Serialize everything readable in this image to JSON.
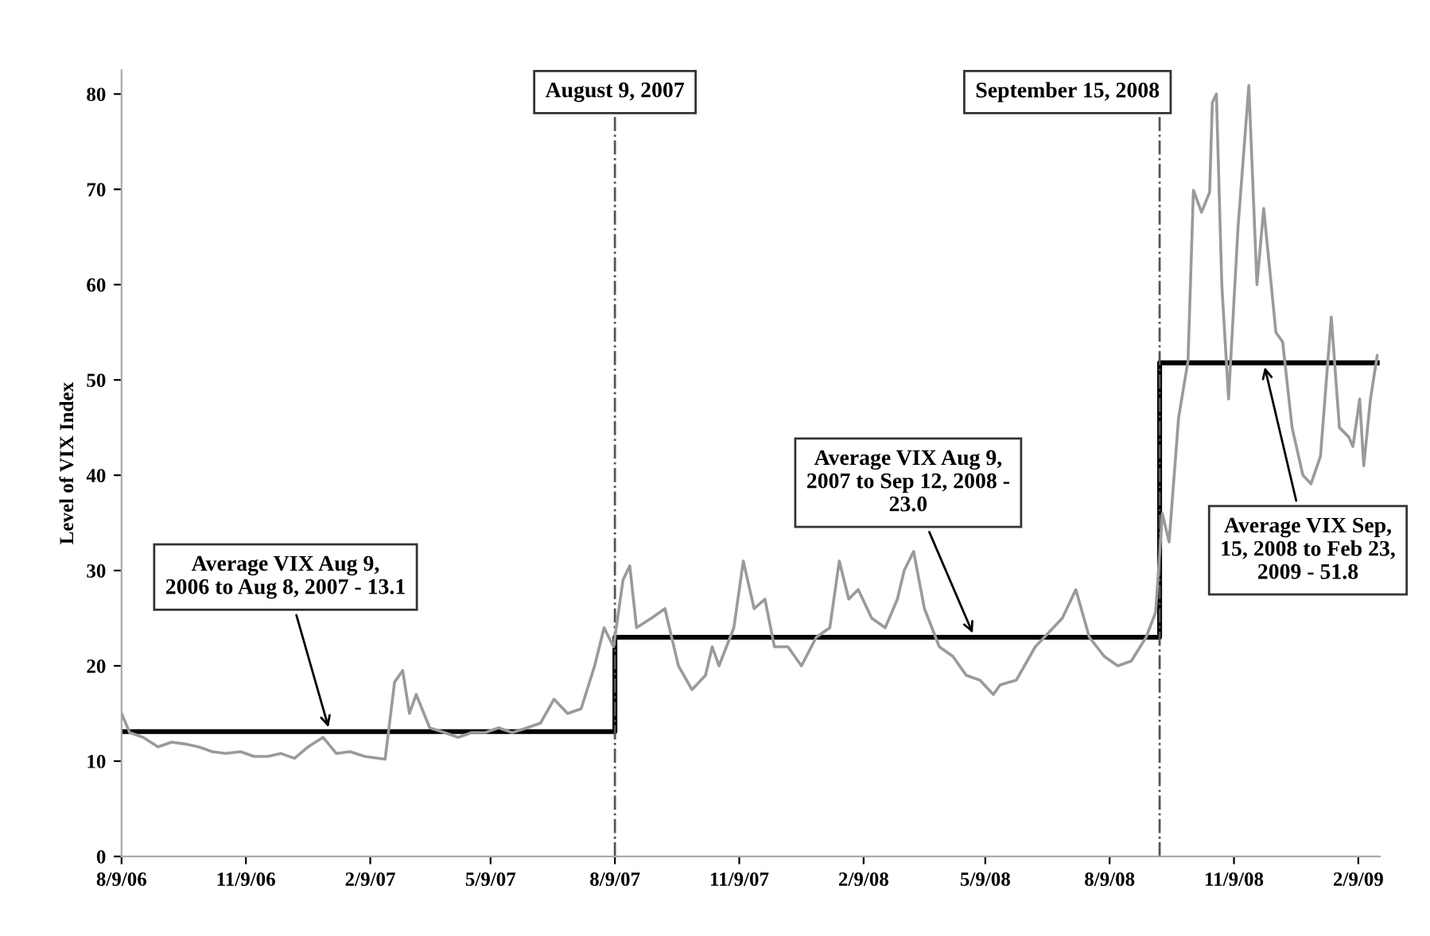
{
  "chart_data": {
    "type": "line",
    "ylabel": "Level of VIX Index",
    "xlim": [
      "2006-08-09",
      "2009-02-25"
    ],
    "ylim": [
      0,
      82.5
    ],
    "yticks": [
      0,
      10,
      20,
      30,
      40,
      50,
      60,
      70,
      80
    ],
    "xticks": [
      {
        "value": "2006-08-09",
        "label": "8/9/06"
      },
      {
        "value": "2006-11-09",
        "label": "11/9/06"
      },
      {
        "value": "2007-02-09",
        "label": "2/9/07"
      },
      {
        "value": "2007-05-09",
        "label": "5/9/07"
      },
      {
        "value": "2007-08-09",
        "label": "8/9/07"
      },
      {
        "value": "2007-11-09",
        "label": "11/9/07"
      },
      {
        "value": "2008-02-09",
        "label": "2/9/08"
      },
      {
        "value": "2008-05-09",
        "label": "5/9/08"
      },
      {
        "value": "2008-08-09",
        "label": "8/9/08"
      },
      {
        "value": "2008-11-09",
        "label": "11/9/08"
      },
      {
        "value": "2009-02-09",
        "label": "2/9/09"
      }
    ],
    "grid": false,
    "legend": false,
    "series": [
      {
        "color": "#9a9a9a",
        "x": [
          "2006-08-09",
          "2006-08-15",
          "2006-08-25",
          "2006-09-05",
          "2006-09-15",
          "2006-09-25",
          "2006-10-05",
          "2006-10-15",
          "2006-10-25",
          "2006-11-05",
          "2006-11-15",
          "2006-11-25",
          "2006-12-05",
          "2006-12-15",
          "2006-12-25",
          "2007-01-05",
          "2007-01-15",
          "2007-01-25",
          "2007-02-05",
          "2007-02-20",
          "2007-02-27",
          "2007-03-05",
          "2007-03-10",
          "2007-03-15",
          "2007-03-25",
          "2007-04-05",
          "2007-04-15",
          "2007-04-25",
          "2007-05-05",
          "2007-05-15",
          "2007-05-25",
          "2007-06-05",
          "2007-06-15",
          "2007-06-25",
          "2007-07-05",
          "2007-07-15",
          "2007-07-25",
          "2007-08-01",
          "2007-08-08",
          "2007-08-15",
          "2007-08-20",
          "2007-08-25",
          "2007-09-05",
          "2007-09-15",
          "2007-09-25",
          "2007-10-05",
          "2007-10-15",
          "2007-10-20",
          "2007-10-25",
          "2007-11-05",
          "2007-11-12",
          "2007-11-20",
          "2007-11-28",
          "2007-12-05",
          "2007-12-15",
          "2007-12-25",
          "2008-01-05",
          "2008-01-15",
          "2008-01-22",
          "2008-01-29",
          "2008-02-05",
          "2008-02-15",
          "2008-02-25",
          "2008-03-05",
          "2008-03-10",
          "2008-03-17",
          "2008-03-25",
          "2008-04-05",
          "2008-04-15",
          "2008-04-25",
          "2008-05-05",
          "2008-05-15",
          "2008-05-20",
          "2008-06-01",
          "2008-06-15",
          "2008-06-25",
          "2008-07-05",
          "2008-07-15",
          "2008-07-25",
          "2008-08-05",
          "2008-08-15",
          "2008-08-25",
          "2008-09-05",
          "2008-09-12",
          "2008-09-15",
          "2008-09-17",
          "2008-09-22",
          "2008-09-29",
          "2008-10-06",
          "2008-10-10",
          "2008-10-16",
          "2008-10-22",
          "2008-10-24",
          "2008-10-27",
          "2008-10-31",
          "2008-11-05",
          "2008-11-12",
          "2008-11-20",
          "2008-11-26",
          "2008-12-01",
          "2008-12-10",
          "2008-12-15",
          "2008-12-22",
          "2008-12-30",
          "2009-01-05",
          "2009-01-12",
          "2009-01-20",
          "2009-01-26",
          "2009-02-02",
          "2009-02-05",
          "2009-02-10",
          "2009-02-13",
          "2009-02-18",
          "2009-02-23"
        ],
        "values": [
          15,
          13,
          12.5,
          11.5,
          12,
          11.8,
          11.5,
          11,
          10.8,
          11,
          10.5,
          10.5,
          10.8,
          10.3,
          11.5,
          12.5,
          10.8,
          11,
          10.5,
          10.2,
          18.3,
          19.5,
          15,
          17,
          13.5,
          13,
          12.5,
          13,
          13,
          13.5,
          13,
          13.5,
          14,
          16.5,
          15,
          15.5,
          20,
          24,
          22,
          29,
          30.5,
          24,
          25,
          26,
          20,
          17.5,
          19,
          22,
          20,
          24,
          31,
          26,
          27,
          22,
          22,
          20,
          23,
          24,
          31,
          27,
          28,
          25,
          24,
          27,
          30,
          32,
          26,
          22,
          21,
          19,
          18.5,
          17,
          18,
          18.5,
          22,
          23.5,
          25,
          28,
          23,
          21,
          20,
          20.5,
          23,
          25.6,
          31.7,
          36,
          33,
          46,
          52,
          69.9,
          67.6,
          69.7,
          79.1,
          80,
          60,
          48,
          66,
          80.9,
          60,
          68,
          55,
          54,
          45,
          40,
          39.1,
          42,
          56.6,
          45,
          44,
          43,
          48,
          41,
          48,
          52.6
        ]
      },
      {
        "type": "step",
        "color": "#000000",
        "x": [
          "2006-08-09",
          "2007-08-09",
          "2008-09-15",
          "2009-02-23"
        ],
        "values": [
          13.1,
          23.0,
          51.8,
          51.8
        ]
      }
    ],
    "ref_lines": [
      {
        "axis": "x",
        "value": "2007-08-09",
        "label": "August 9, 2007",
        "color": "#555555",
        "line_style": "dashdot"
      },
      {
        "axis": "x",
        "value": "2008-09-15",
        "label": "September 15, 2008",
        "color": "#555555",
        "line_style": "dashdot"
      }
    ],
    "annotations": [
      {
        "text": "Average VIX Aug 9,\n2006 to Aug 8, 2007 - 13.1",
        "x": "2007-01-10",
        "y": 13.1
      },
      {
        "text": "Average VIX Aug 9,\n2007 to Sep 12, 2008 -\n23.0",
        "x": "2008-05-01",
        "y": 23.0
      },
      {
        "text": "Average VIX Sep,\n15, 2008 to Feb 23,\n2009 - 51.8",
        "x": "2008-12-01",
        "y": 51.8
      }
    ]
  }
}
